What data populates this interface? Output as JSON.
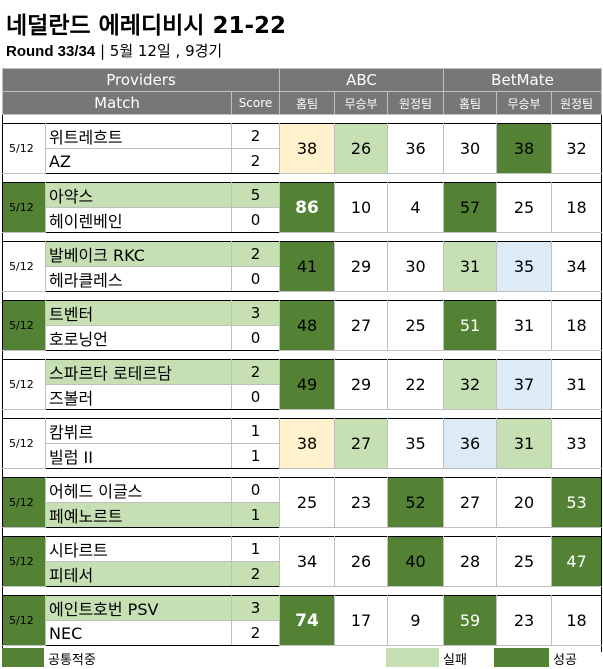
{
  "title": "네덜란드 에레디비시 21-22",
  "subtitle": {
    "round": "Round 33/34",
    "date_info": " | 5월 12일 , 9경기"
  },
  "header": {
    "providers": "Providers",
    "abc": "ABC",
    "betmate": "BetMate",
    "match": "Match",
    "score": "Score",
    "home": "홈팀",
    "draw": "무승부",
    "away": "원정팀"
  },
  "matches": [
    {
      "date": "5/12",
      "home": "위트레흐트",
      "away": "AZ",
      "home_score": "2",
      "away_score": "2",
      "abc": [
        "38",
        "26",
        "36"
      ],
      "betmate": [
        "30",
        "38",
        "32"
      ]
    },
    {
      "date": "5/12",
      "home": "아약스",
      "away": "헤이렌베인",
      "home_score": "5",
      "away_score": "0",
      "abc": [
        "86",
        "10",
        "4"
      ],
      "betmate": [
        "57",
        "25",
        "18"
      ]
    },
    {
      "date": "5/12",
      "home": "발베이크 RKC",
      "away": "헤라클레스",
      "home_score": "2",
      "away_score": "0",
      "abc": [
        "41",
        "29",
        "30"
      ],
      "betmate": [
        "31",
        "35",
        "34"
      ]
    },
    {
      "date": "5/12",
      "home": "트벤터",
      "away": "호로닝언",
      "home_score": "3",
      "away_score": "0",
      "abc": [
        "48",
        "27",
        "25"
      ],
      "betmate": [
        "51",
        "31",
        "18"
      ]
    },
    {
      "date": "5/12",
      "home": "스파르타 로테르담",
      "away": "즈볼러",
      "home_score": "2",
      "away_score": "0",
      "abc": [
        "49",
        "29",
        "22"
      ],
      "betmate": [
        "32",
        "37",
        "31"
      ]
    },
    {
      "date": "5/12",
      "home": "캄뷔르",
      "away": "빌럼 II",
      "home_score": "1",
      "away_score": "1",
      "abc": [
        "38",
        "27",
        "35"
      ],
      "betmate": [
        "36",
        "31",
        "33"
      ]
    },
    {
      "date": "5/12",
      "home": "어헤드 이글스",
      "away": "페예노르트",
      "home_score": "0",
      "away_score": "1",
      "abc": [
        "25",
        "23",
        "52"
      ],
      "betmate": [
        "27",
        "20",
        "53"
      ]
    },
    {
      "date": "5/12",
      "home": "시타르트",
      "away": "피테서",
      "home_score": "1",
      "away_score": "2",
      "abc": [
        "34",
        "26",
        "40"
      ],
      "betmate": [
        "28",
        "25",
        "47"
      ]
    },
    {
      "date": "5/12",
      "home": "에인트호번 PSV",
      "away": "NEC",
      "home_score": "3",
      "away_score": "2",
      "abc": [
        "74",
        "17",
        "9"
      ],
      "betmate": [
        "59",
        "23",
        "18"
      ]
    }
  ],
  "legend": {
    "common": "공통적중",
    "fail": "실패",
    "success": "성공"
  },
  "colors": {
    "header_gray": "#777777",
    "success_green": "#548235",
    "light_green": "#c6e0b4",
    "light_yellow": "#fff2cc",
    "light_blue": "#ddebf7"
  }
}
